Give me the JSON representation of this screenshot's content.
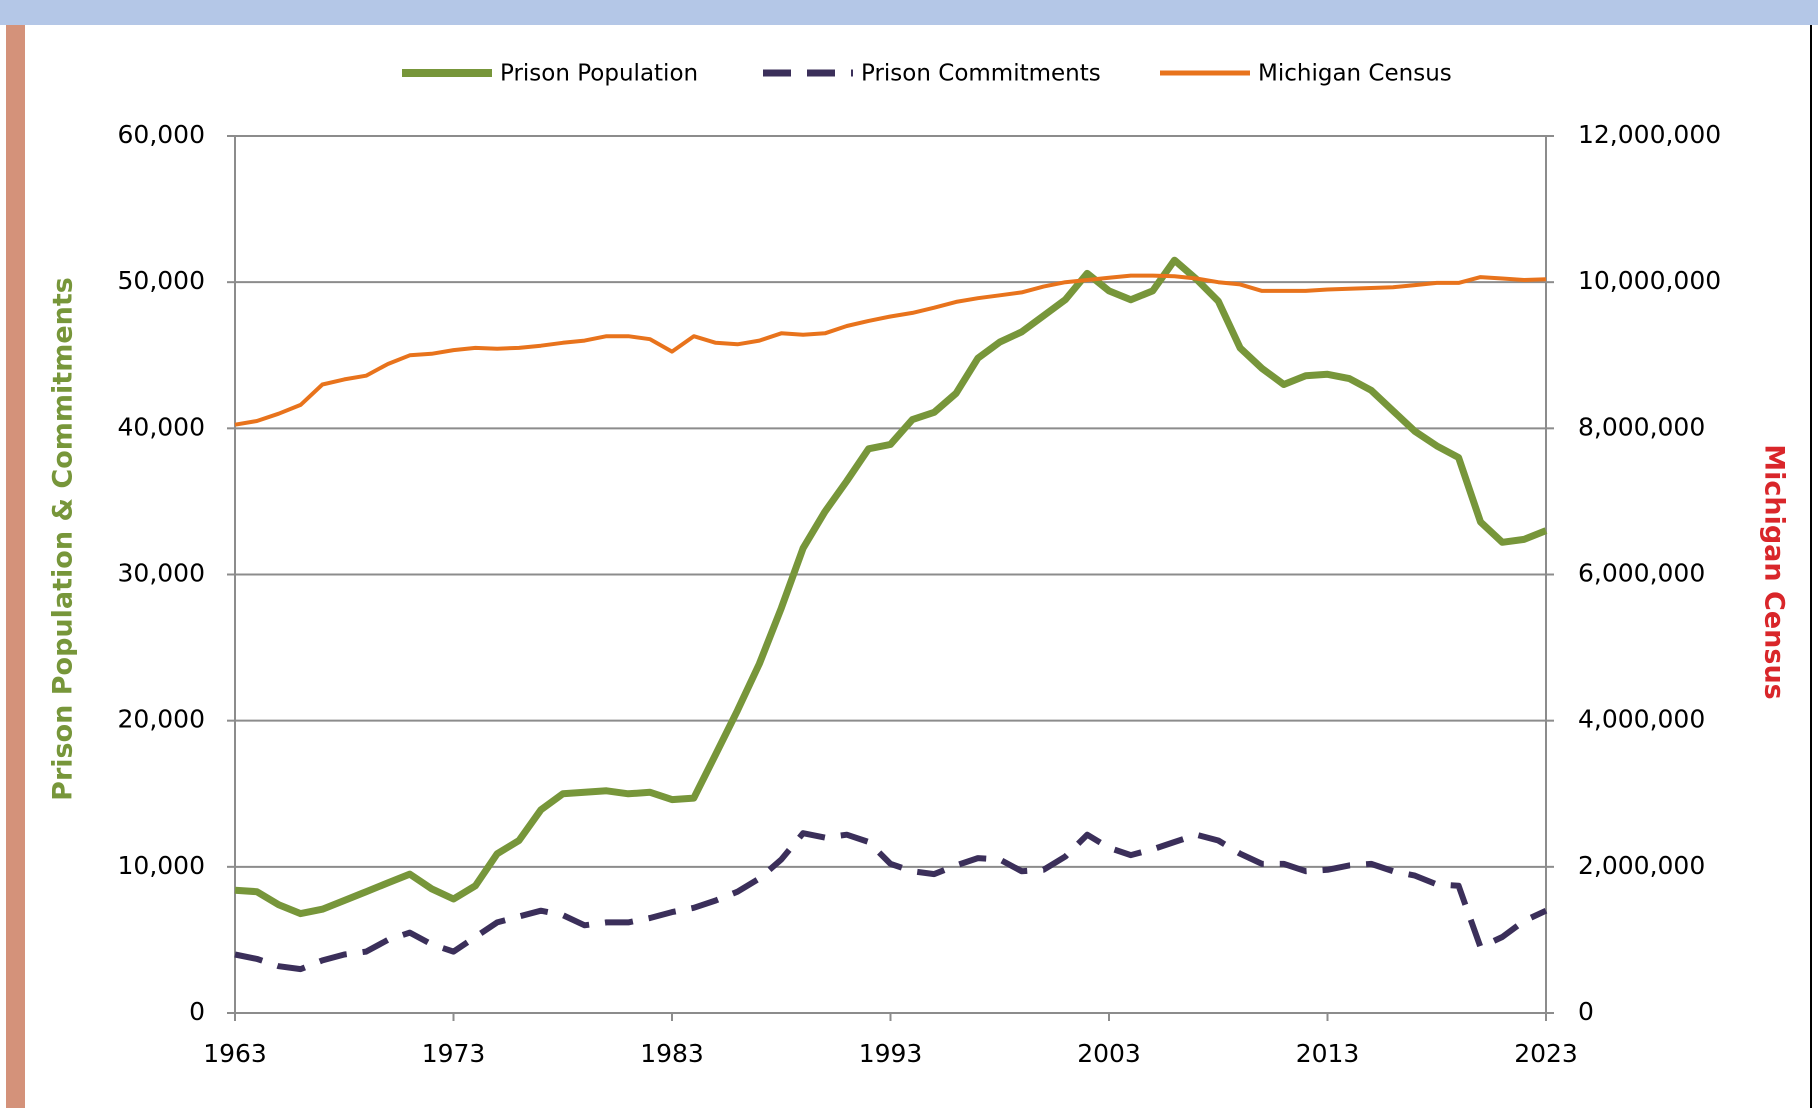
{
  "chart_data": {
    "type": "line",
    "y_axis_label": "Prison Population & Commitments",
    "y2_axis_label": "Michigan Census",
    "x": [
      1963,
      1964,
      1965,
      1966,
      1967,
      1968,
      1969,
      1970,
      1971,
      1972,
      1973,
      1974,
      1975,
      1976,
      1977,
      1978,
      1979,
      1980,
      1981,
      1982,
      1983,
      1984,
      1985,
      1986,
      1987,
      1988,
      1989,
      1990,
      1991,
      1992,
      1993,
      1994,
      1995,
      1996,
      1997,
      1998,
      1999,
      2000,
      2001,
      2002,
      2003,
      2004,
      2005,
      2006,
      2007,
      2008,
      2009,
      2010,
      2011,
      2012,
      2013,
      2014,
      2015,
      2016,
      2017,
      2018,
      2019,
      2020,
      2021,
      2022,
      2023
    ],
    "xlim": [
      1963,
      2023
    ],
    "xticks": [
      1963,
      1973,
      1983,
      1993,
      2003,
      2013,
      2023
    ],
    "ylim": [
      0,
      60000
    ],
    "yticks": [
      0,
      {
        "value": 10000,
        "label": "10,000"
      },
      {
        "value": 20000,
        "label": "20,000"
      },
      {
        "value": 30000,
        "label": "30,000"
      },
      {
        "value": 40000,
        "label": "40,000"
      },
      {
        "value": 50000,
        "label": "50,000"
      },
      {
        "value": 60000,
        "label": "60,000"
      }
    ],
    "y2lim": [
      0,
      12000000
    ],
    "y2ticks": [
      0,
      {
        "value": 2000000,
        "label": "2,000,000"
      },
      {
        "value": 4000000,
        "label": "4,000,000"
      },
      {
        "value": 6000000,
        "label": "6,000,000"
      },
      {
        "value": 8000000,
        "label": "8,000,000"
      },
      {
        "value": 10000000,
        "label": "10,000,000"
      },
      {
        "value": 12000000,
        "label": "12,000,000"
      }
    ],
    "grid": true,
    "legend": "top",
    "series": [
      {
        "name": "Prison Population",
        "color": "#77963a",
        "line_style": "solid",
        "width": 7,
        "values": [
          8400,
          8300,
          7400,
          6800,
          7100,
          7700,
          8300,
          8900,
          9500,
          8500,
          7800,
          8700,
          10900,
          11800,
          13900,
          15000,
          15100,
          15200,
          15000,
          15100,
          14600,
          14700,
          17700,
          20700,
          23900,
          27700,
          31800,
          34300,
          36400,
          38600,
          38900,
          40600,
          41100,
          42400,
          44800,
          45900,
          46600,
          47700,
          48800,
          50600,
          49400,
          48800,
          49400,
          51500,
          50200,
          48700,
          45500,
          44100,
          43000,
          43600,
          43700,
          43400,
          42600,
          41200,
          39800,
          38800,
          38000,
          33600,
          32200,
          32400,
          33000
        ]
      },
      {
        "name": "Prison Commitments",
        "color": "#3b2f5a",
        "line_style": "dashed",
        "width": 6,
        "values": [
          4000,
          3700,
          3200,
          3000,
          3600,
          4000,
          4200,
          5000,
          5500,
          4700,
          4200,
          5200,
          6200,
          6600,
          7000,
          6700,
          6000,
          6200,
          6200,
          6500,
          6900,
          7200,
          7700,
          8300,
          9200,
          10500,
          12300,
          12000,
          12200,
          11700,
          10200,
          9700,
          9500,
          10100,
          10600,
          10500,
          9700,
          9800,
          10700,
          12200,
          11300,
          10800,
          11200,
          11700,
          12200,
          11800,
          10900,
          10200,
          10200,
          9700,
          9800,
          10100,
          10200,
          9700,
          9400,
          8800,
          8700,
          4500,
          5200,
          6300,
          7000
        ]
      },
      {
        "name": "Michigan Census",
        "color": "#e8731c",
        "line_style": "solid",
        "width": 4,
        "axis": "y2",
        "values": [
          8050000,
          8100000,
          8200000,
          8320000,
          8600000,
          8670000,
          8720000,
          8880000,
          9000000,
          9020000,
          9070000,
          9100000,
          9090000,
          9100000,
          9130000,
          9170000,
          9200000,
          9260000,
          9260000,
          9220000,
          9050000,
          9260000,
          9170000,
          9150000,
          9200000,
          9300000,
          9280000,
          9300000,
          9400000,
          9470000,
          9530000,
          9580000,
          9650000,
          9730000,
          9780000,
          9820000,
          9860000,
          9940000,
          10000000,
          10030000,
          10060000,
          10090000,
          10090000,
          10080000,
          10050000,
          10000000,
          9970000,
          9880000,
          9880000,
          9880000,
          9900000,
          9910000,
          9920000,
          9930000,
          9960000,
          9990000,
          9990000,
          10070000,
          10050000,
          10030000,
          10040000
        ]
      }
    ]
  }
}
